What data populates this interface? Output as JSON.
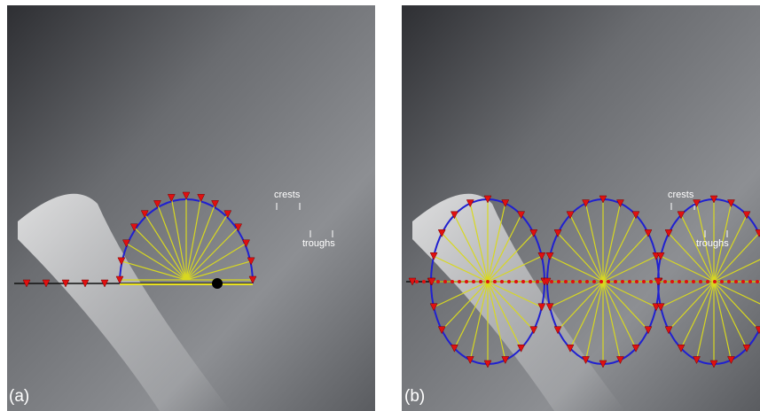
{
  "panels": [
    {
      "label": "(a)",
      "crests": "crests",
      "troughs": "troughs"
    },
    {
      "label": "(b)",
      "crests": "crests",
      "troughs": "troughs"
    }
  ]
}
